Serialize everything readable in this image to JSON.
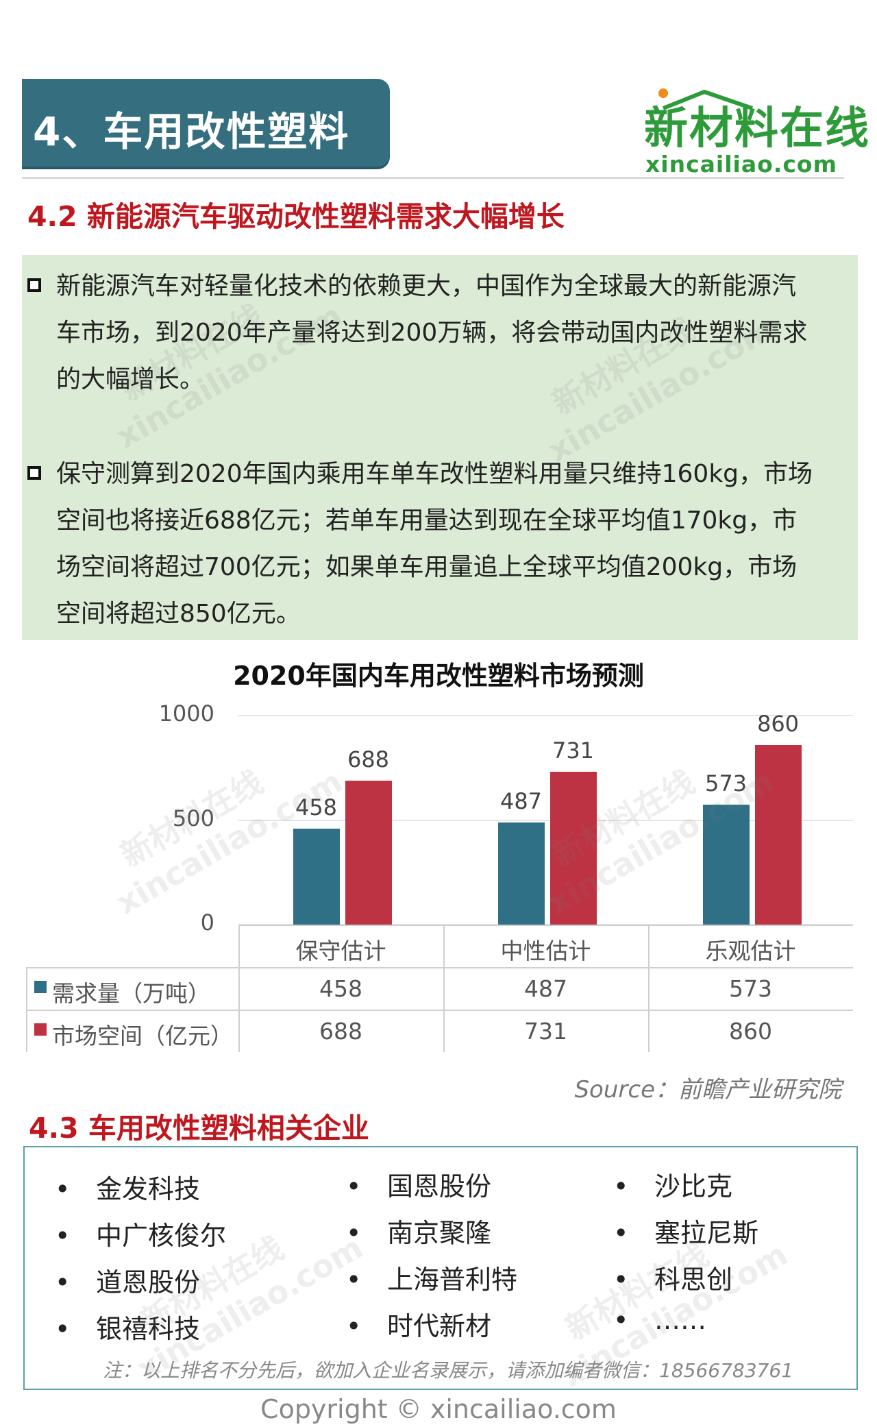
{
  "header": {
    "section_title": "4、车用改性塑料",
    "logo_cn": "新材料在线",
    "logo_en": "xincailiao.com"
  },
  "section_4_2": {
    "title": "4.2 新能源汽车驱动改性塑料需求大幅增长",
    "para1": [
      "新能源汽车对轻量化技术的依赖更大，中国作为全球最大的新能源汽",
      "车市场，到2020年产量将达到200万辆，将会带动国内改性塑料需求",
      "的大幅增长。"
    ],
    "para2": [
      "保守测算到2020年国内乘用车单车改性塑料用量只维持160kg，市场",
      "空间也将接近688亿元；若单车用量达到现在全球平均值170kg，市",
      "场空间将超过700亿元；如果单车用量追上全球平均值200kg，市场",
      "空间将超过850亿元。"
    ]
  },
  "chart_data": {
    "type": "bar",
    "title": "2020年国内车用改性塑料市场预测",
    "categories": [
      "保守估计",
      "中性估计",
      "乐观估计"
    ],
    "series": [
      {
        "name": "需求量（万吨）",
        "values": [
          458,
          487,
          573
        ],
        "color": "#2f7086"
      },
      {
        "name": "市场空间（亿元）",
        "values": [
          688,
          731,
          860
        ],
        "color": "#be3343"
      }
    ],
    "ylim": [
      0,
      1000
    ],
    "yticks": [
      "0",
      "500",
      "1000"
    ],
    "grid": true,
    "legend": "data-table"
  },
  "source": "Source：前瞻产业研究院",
  "section_4_3": {
    "title": "4.3 车用改性塑料相关企业",
    "columns": [
      [
        "金发科技",
        "中广核俊尔",
        "道恩股份",
        "银禧科技"
      ],
      [
        "国恩股份",
        "南京聚隆",
        "上海普利特",
        "时代新材"
      ],
      [
        "沙比克",
        "塞拉尼斯",
        "科思创",
        "……"
      ]
    ],
    "bullet": "•",
    "note": "注：以上排名不分先后，欲加入企业名录展示，请添加编者微信：18566783761"
  },
  "footer": {
    "copyright": "Copyright © xincailiao.com"
  },
  "watermark": {
    "line1": "新材料在线",
    "line2": "xincailiao.com"
  }
}
